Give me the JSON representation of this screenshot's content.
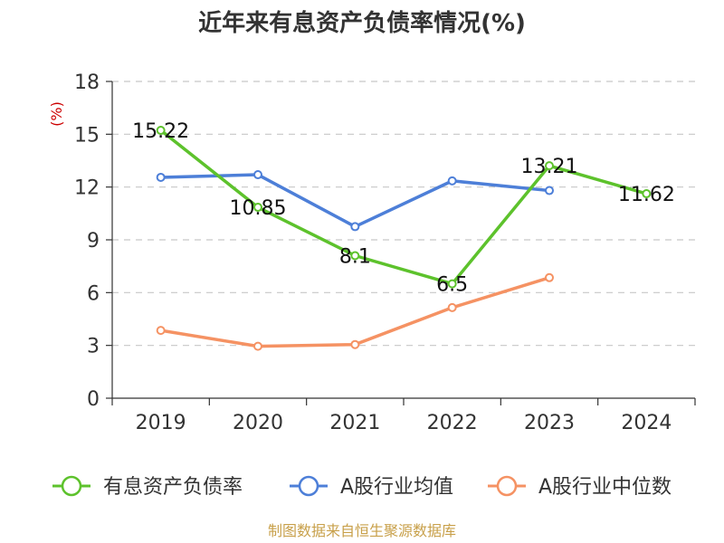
{
  "chart_data": {
    "type": "line",
    "title": "近年来有息资产负债率情况(%)",
    "ylabel": "(%)",
    "xlabel": "",
    "categories": [
      "2019",
      "2020",
      "2021",
      "2022",
      "2023",
      "2024"
    ],
    "ylim": [
      0,
      18
    ],
    "yticks": [
      0,
      3,
      6,
      9,
      12,
      15,
      18
    ],
    "grid": true,
    "legend_position": "bottom",
    "series": [
      {
        "name": "有息资产负债率",
        "color": "#5dc22c",
        "values": [
          15.22,
          10.85,
          8.1,
          6.5,
          13.21,
          11.62
        ],
        "labels": [
          "15.22",
          "10.85",
          "8.1",
          "6.5",
          "13.21",
          "11.62"
        ]
      },
      {
        "name": "A股行业均值",
        "color": "#4d7fd8",
        "values": [
          12.55,
          12.7,
          9.75,
          12.35,
          11.8,
          null
        ]
      },
      {
        "name": "A股行业中位数",
        "color": "#f59263",
        "values": [
          3.85,
          2.95,
          3.05,
          5.15,
          6.85,
          null
        ]
      }
    ],
    "source": "制图数据来自恒生聚源数据库"
  }
}
